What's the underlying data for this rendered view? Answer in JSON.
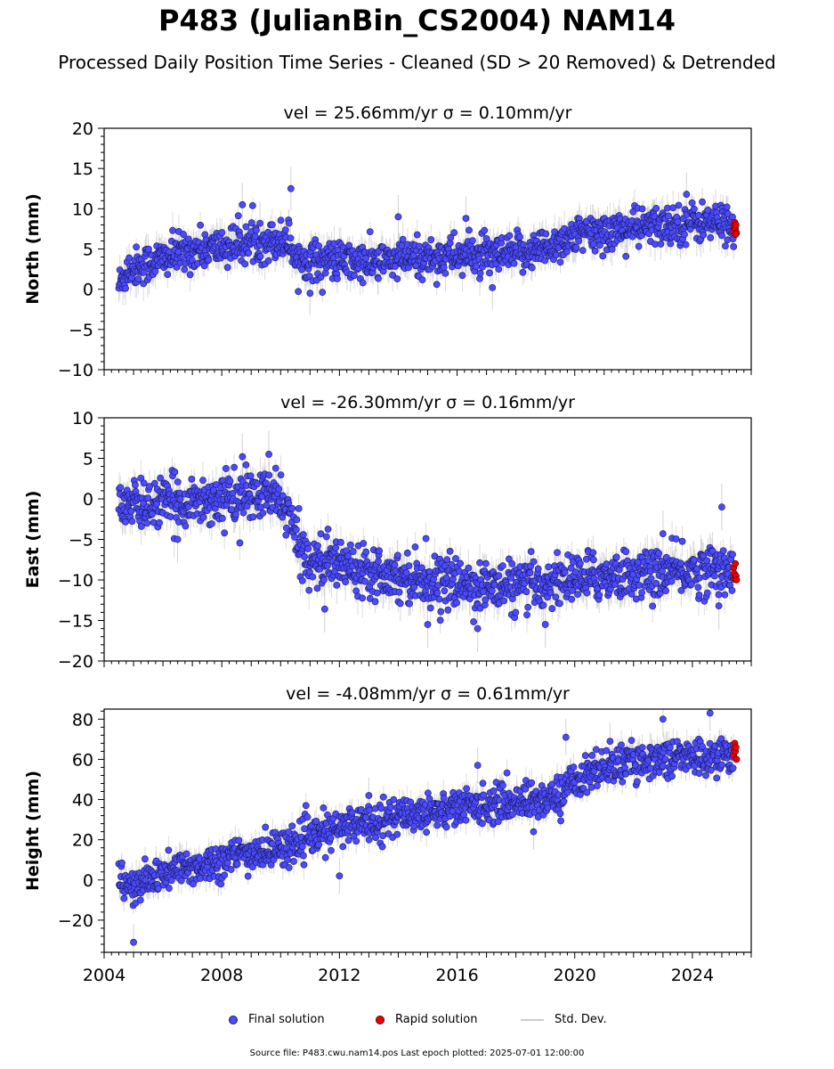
{
  "title": "P483 (JulianBin_CS2004) NAM14",
  "subtitle": "Processed Daily Position Time Series - Cleaned (SD > 20 Removed) & Detrended",
  "legend": {
    "final": "Final solution",
    "rapid": "Rapid solution",
    "std": "Std. Dev."
  },
  "footer": "Source file: P483.cwu.nam14.pos  Last epoch plotted: 2025-07-01 12:00:00",
  "colors": {
    "final": "#4a4aff",
    "final_edge": "#1a1a5a",
    "rapid": "#ee0000",
    "std": "#bfbfbf"
  },
  "chart_data": [
    {
      "type": "scatter",
      "title": "vel = 25.66mm/yr   σ = 0.10mm/yr",
      "ylabel": "North (mm)",
      "xlim": [
        2004,
        2026
      ],
      "ylim": [
        -10,
        20
      ],
      "yticks": [
        -10,
        -5,
        0,
        5,
        10,
        15,
        20
      ],
      "xticks": [
        2004,
        2008,
        2012,
        2016,
        2020,
        2024
      ],
      "trend": [
        [
          2004.5,
          0.5
        ],
        [
          2004.8,
          2.5
        ],
        [
          2006.0,
          3.8
        ],
        [
          2007.0,
          4.8
        ],
        [
          2008.0,
          5.2
        ],
        [
          2009.0,
          5.8
        ],
        [
          2010.3,
          6.2
        ],
        [
          2010.5,
          3.8
        ],
        [
          2011.5,
          3.6
        ],
        [
          2013.0,
          3.2
        ],
        [
          2014.5,
          3.8
        ],
        [
          2016.0,
          4.2
        ],
        [
          2017.5,
          4.0
        ],
        [
          2019.0,
          5.2
        ],
        [
          2020.0,
          6.6
        ],
        [
          2021.5,
          7.4
        ],
        [
          2023.0,
          7.9
        ],
        [
          2024.0,
          8.3
        ],
        [
          2025.4,
          8.2
        ]
      ],
      "scatter_sd": 1.2,
      "std_sd": 1.5,
      "outliers": [
        [
          2010.35,
          12.5
        ],
        [
          2008.7,
          10.5
        ],
        [
          2009.3,
          8.2
        ],
        [
          2014.0,
          9.0
        ],
        [
          2023.8,
          11.8
        ],
        [
          2016.3,
          8.8
        ],
        [
          2017.2,
          0.2
        ],
        [
          2011.0,
          -0.5
        ]
      ],
      "rapid": [
        [
          2025.4,
          7.2
        ],
        [
          2025.42,
          7.8
        ],
        [
          2025.44,
          8.3
        ],
        [
          2025.46,
          7.5
        ],
        [
          2025.48,
          8.0
        ],
        [
          2025.5,
          7.0
        ],
        [
          2025.47,
          6.8
        ]
      ]
    },
    {
      "type": "scatter",
      "title": "vel = -26.30mm/yr   σ = 0.16mm/yr",
      "ylabel": "East (mm)",
      "xlim": [
        2004,
        2026
      ],
      "ylim": [
        -20,
        10
      ],
      "yticks": [
        -20,
        -15,
        -10,
        -5,
        0,
        5,
        10
      ],
      "xticks": [
        2004,
        2008,
        2012,
        2016,
        2020,
        2024
      ],
      "trend": [
        [
          2004.5,
          -1.0
        ],
        [
          2006.0,
          -0.5
        ],
        [
          2008.0,
          0.0
        ],
        [
          2009.5,
          0.5
        ],
        [
          2010.0,
          0.0
        ],
        [
          2010.3,
          -2.0
        ],
        [
          2010.6,
          -6.0
        ],
        [
          2011.0,
          -7.5
        ],
        [
          2012.0,
          -8.0
        ],
        [
          2013.0,
          -8.5
        ],
        [
          2014.0,
          -9.5
        ],
        [
          2015.5,
          -10.3
        ],
        [
          2017.0,
          -10.8
        ],
        [
          2018.5,
          -10.8
        ],
        [
          2019.5,
          -10.0
        ],
        [
          2021.0,
          -9.5
        ],
        [
          2023.0,
          -9.2
        ],
        [
          2025.4,
          -8.5
        ]
      ],
      "scatter_sd": 1.5,
      "std_sd": 1.6,
      "outliers": [
        [
          2008.7,
          5.2
        ],
        [
          2009.6,
          5.5
        ],
        [
          2006.5,
          -5.0
        ],
        [
          2011.5,
          -13.6
        ],
        [
          2015.0,
          -15.5
        ],
        [
          2016.7,
          -16.0
        ],
        [
          2019.0,
          -15.5
        ],
        [
          2025.0,
          -1.0
        ],
        [
          2024.9,
          -13.2
        ],
        [
          2023.0,
          -4.3
        ]
      ],
      "rapid": [
        [
          2025.4,
          -8.5
        ],
        [
          2025.42,
          -9.2
        ],
        [
          2025.44,
          -9.8
        ],
        [
          2025.46,
          -8.0
        ],
        [
          2025.48,
          -9.5
        ],
        [
          2025.5,
          -10.0
        ]
      ]
    },
    {
      "type": "scatter",
      "title": "vel = -4.08mm/yr   σ = 0.61mm/yr",
      "ylabel": "Height (mm)",
      "xlim": [
        2004,
        2026
      ],
      "ylim": [
        -36,
        85
      ],
      "yticks": [
        -20,
        0,
        20,
        40,
        60,
        80
      ],
      "xticks": [
        2004,
        2008,
        2012,
        2016,
        2020,
        2024
      ],
      "xticklabels": [
        "2004",
        "2008",
        "2012",
        "2016",
        "2020",
        "2024"
      ],
      "trend": [
        [
          2004.5,
          0.0
        ],
        [
          2005.0,
          -5.0
        ],
        [
          2005.5,
          0.0
        ],
        [
          2006.5,
          5.0
        ],
        [
          2007.5,
          8.0
        ],
        [
          2008.5,
          12.0
        ],
        [
          2009.5,
          14.0
        ],
        [
          2010.5,
          18.0
        ],
        [
          2011.5,
          23.0
        ],
        [
          2012.5,
          28.0
        ],
        [
          2013.5,
          30.0
        ],
        [
          2014.5,
          33.0
        ],
        [
          2015.5,
          35.0
        ],
        [
          2016.5,
          37.0
        ],
        [
          2017.5,
          38.0
        ],
        [
          2018.5,
          40.0
        ],
        [
          2019.2,
          40.0
        ],
        [
          2019.6,
          44.0
        ],
        [
          2020.0,
          50.0
        ],
        [
          2021.0,
          56.0
        ],
        [
          2022.5,
          60.0
        ],
        [
          2023.5,
          61.0
        ],
        [
          2024.5,
          61.0
        ],
        [
          2025.4,
          62.0
        ]
      ],
      "scatter_sd": 4.5,
      "std_sd": 5.0,
      "outliers": [
        [
          2005.0,
          -31.0
        ],
        [
          2019.7,
          71.0
        ],
        [
          2023.0,
          80.0
        ],
        [
          2024.6,
          83.0
        ],
        [
          2012.0,
          2.0
        ],
        [
          2021.2,
          69.0
        ],
        [
          2016.7,
          57.0
        ],
        [
          2018.6,
          24.0
        ],
        [
          2013.0,
          42.0
        ]
      ],
      "rapid": [
        [
          2025.4,
          62.0
        ],
        [
          2025.42,
          65.0
        ],
        [
          2025.44,
          68.0
        ],
        [
          2025.46,
          64.0
        ],
        [
          2025.48,
          66.0
        ],
        [
          2025.5,
          60.0
        ]
      ]
    }
  ]
}
